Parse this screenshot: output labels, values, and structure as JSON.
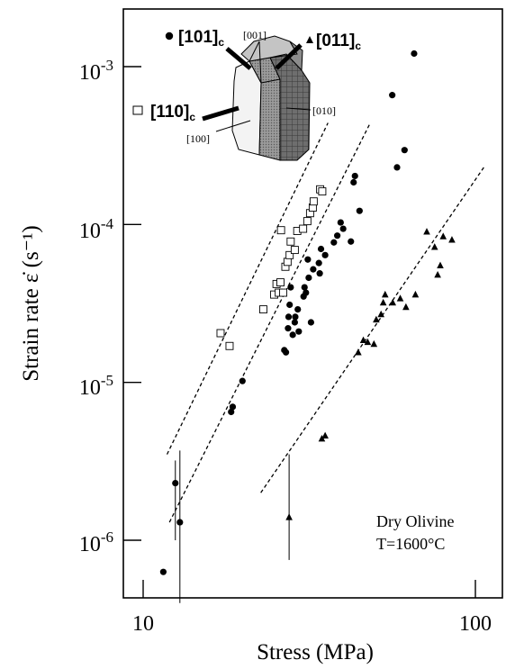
{
  "chart_data": {
    "type": "scatter",
    "xscale": "log",
    "yscale": "log",
    "xlim": [
      9,
      120
    ],
    "ylim": [
      4e-07,
      0.0032
    ],
    "xlabel": "Stress (MPa)",
    "ylabel": "Strain rate",
    "ylabel_symbol": "ε̇",
    "ylabel_unit": "(s⁻¹)",
    "x_ticks": [
      {
        "value": 10,
        "label": "10"
      },
      {
        "value": 100,
        "label": "100"
      }
    ],
    "y_ticks": [
      {
        "value": 1e-06,
        "base": "10",
        "exp": "-6"
      },
      {
        "value": 1e-05,
        "base": "10",
        "exp": "-5"
      },
      {
        "value": 0.0001,
        "base": "10",
        "exp": "-4"
      },
      {
        "value": 0.001,
        "base": "10",
        "exp": "-3"
      }
    ],
    "annotation": [
      "Dry Olivine",
      "T=1600°C"
    ],
    "crystal_labels": [
      "[001]",
      "[010]",
      "[100]"
    ],
    "series": [
      {
        "name": "[101]c",
        "name_main": "[101]",
        "name_sub": "c",
        "marker": "circle",
        "points": [
          [
            11.5,
            6.3e-07
          ],
          [
            12.5,
            2.3e-06
          ],
          [
            12.9,
            1.3e-06
          ],
          [
            18.4,
            6.5e-06
          ],
          [
            18.6,
            7e-06
          ],
          [
            19.9,
            1.02e-05
          ],
          [
            26.6,
            1.6e-05
          ],
          [
            26.9,
            1.55e-05
          ],
          [
            27.3,
            2.2e-05
          ],
          [
            27.4,
            2.6e-05
          ],
          [
            27.6,
            3.1e-05
          ],
          [
            27.8,
            4e-05
          ],
          [
            28.2,
            2e-05
          ],
          [
            28.6,
            2.4e-05
          ],
          [
            28.7,
            2.6e-05
          ],
          [
            29.2,
            2.9e-05
          ],
          [
            29.4,
            2.1e-05
          ],
          [
            30.4,
            3.5e-05
          ],
          [
            30.6,
            4e-05
          ],
          [
            30.9,
            3.7e-05
          ],
          [
            31.3,
            6e-05
          ],
          [
            31.5,
            4.6e-05
          ],
          [
            32.0,
            2.4e-05
          ],
          [
            32.5,
            5.2e-05
          ],
          [
            33.8,
            5.7e-05
          ],
          [
            34.0,
            4.9e-05
          ],
          [
            34.3,
            7e-05
          ],
          [
            35.3,
            6.4e-05
          ],
          [
            37.5,
            7.7e-05
          ],
          [
            38.4,
            8.5e-05
          ],
          [
            39.3,
            0.000103
          ],
          [
            40.0,
            9.4e-05
          ],
          [
            42.2,
            7.8e-05
          ],
          [
            43.0,
            0.000185
          ],
          [
            43.4,
            0.000203
          ],
          [
            44.8,
            0.000122
          ],
          [
            56.2,
            0.00066
          ],
          [
            58.1,
            0.00023
          ],
          [
            61.2,
            0.000296
          ],
          [
            65.4,
            0.00121
          ]
        ]
      },
      {
        "name": "[110]c",
        "name_main": "[110]",
        "name_sub": "c",
        "marker": "square",
        "points": [
          [
            17.1,
            2.05e-05
          ],
          [
            18.2,
            1.7e-05
          ],
          [
            23.0,
            2.9e-05
          ],
          [
            24.8,
            3.6e-05
          ],
          [
            25.2,
            4.2e-05
          ],
          [
            25.6,
            3.7e-05
          ],
          [
            25.9,
            4.3e-05
          ],
          [
            26.0,
            9.2e-05
          ],
          [
            26.4,
            3.7e-05
          ],
          [
            26.8,
            5.4e-05
          ],
          [
            27.2,
            5.8e-05
          ],
          [
            27.6,
            6.4e-05
          ],
          [
            27.8,
            7.8e-05
          ],
          [
            28.6,
            6.9e-05
          ],
          [
            29.1,
            9.1e-05
          ],
          [
            30.3,
            9.4e-05
          ],
          [
            31.2,
            0.000105
          ],
          [
            31.8,
            0.000118
          ],
          [
            32.4,
            0.000128
          ],
          [
            32.6,
            0.00014
          ],
          [
            34.1,
            0.000167
          ],
          [
            34.6,
            0.000162
          ]
        ]
      },
      {
        "name": "[011]c",
        "name_main": "[011]",
        "name_sub": "c",
        "marker": "triangle",
        "points": [
          [
            27.5,
            1.4e-06
          ],
          [
            34.5,
            4.4e-06
          ],
          [
            35.3,
            4.6e-06
          ],
          [
            44.4,
            1.55e-05
          ],
          [
            46.0,
            1.85e-05
          ],
          [
            47.4,
            1.8e-05
          ],
          [
            49.5,
            1.75e-05
          ],
          [
            50.3,
            2.5e-05
          ],
          [
            52.0,
            2.7e-05
          ],
          [
            52.8,
            3.2e-05
          ],
          [
            53.5,
            3.6e-05
          ],
          [
            56.4,
            3.2e-05
          ],
          [
            59.4,
            3.4e-05
          ],
          [
            61.8,
            3e-05
          ],
          [
            66.0,
            3.6e-05
          ],
          [
            71.4,
            9e-05
          ],
          [
            75.4,
            7.2e-05
          ],
          [
            77.0,
            4.8e-05
          ],
          [
            78.4,
            5.5e-05
          ],
          [
            80.0,
            8.4e-05
          ],
          [
            85.0,
            8e-05
          ]
        ]
      }
    ],
    "fit_lines": [
      {
        "series": "[110]c",
        "from": [
          11.8,
          3.5e-06
        ],
        "to": [
          36.0,
          0.00044
        ]
      },
      {
        "series": "[101]c",
        "from": [
          12.0,
          1.3e-06
        ],
        "to": [
          48.0,
          0.00043
        ]
      },
      {
        "series": "[011]c",
        "from": [
          22.6,
          2e-06
        ],
        "to": [
          106.0,
          0.00023
        ]
      }
    ],
    "error_bars": [
      {
        "x": 12.5,
        "y_low": 1e-06,
        "y_high": 3.2e-06
      },
      {
        "x": 12.9,
        "y_low": 4e-07,
        "y_high": 3.7e-06
      },
      {
        "x": 27.5,
        "y_low": 7.5e-07,
        "y_high": 3.5e-06
      }
    ]
  }
}
